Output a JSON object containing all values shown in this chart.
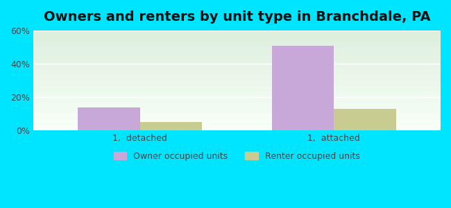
{
  "title": "Owners and renters by unit type in Branchdale, PA",
  "categories": [
    "1,  detached",
    "1,  attached"
  ],
  "owner_values": [
    14.0,
    51.0
  ],
  "renter_values": [
    5.0,
    13.0
  ],
  "owner_color": "#c8a8d8",
  "renter_color": "#c8cc90",
  "ylim": [
    0,
    60
  ],
  "yticks": [
    0,
    20,
    40,
    60
  ],
  "ytick_labels": [
    "0%",
    "20%",
    "40%",
    "60%"
  ],
  "background_outer": "#00e5ff",
  "background_inner_top": "#f0fff0",
  "background_inner_bottom": "#e8f5e0",
  "bar_width": 0.32,
  "legend_owner": "Owner occupied units",
  "legend_renter": "Renter occupied units",
  "title_fontsize": 14,
  "tick_fontsize": 9
}
